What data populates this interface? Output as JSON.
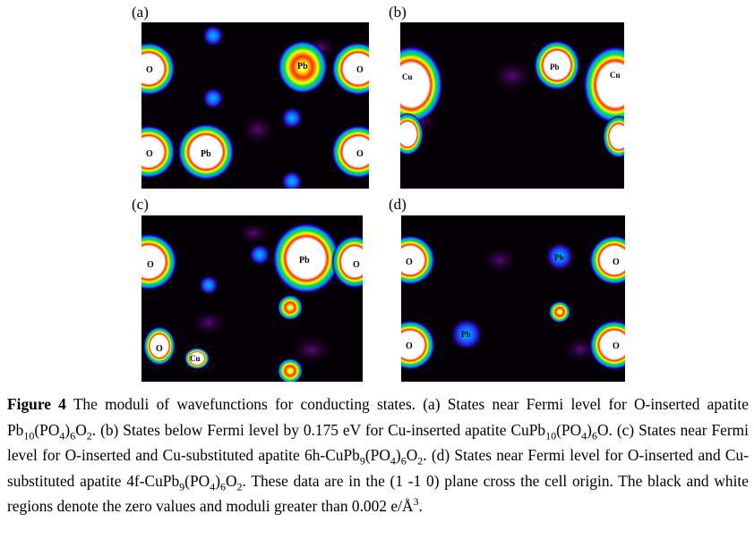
{
  "panels": [
    {
      "id": "a",
      "label": "(a)",
      "atoms": [
        {
          "label": "O"
        },
        {
          "label": "Pb"
        },
        {
          "label": "O"
        },
        {
          "label": "O"
        },
        {
          "label": "Pb"
        },
        {
          "label": "O"
        }
      ]
    },
    {
      "id": "b",
      "label": "(b)",
      "atoms": [
        {
          "label": "Cu"
        },
        {
          "label": "Pb"
        },
        {
          "label": "Cu"
        }
      ]
    },
    {
      "id": "c",
      "label": "(c)",
      "atoms": [
        {
          "label": "O"
        },
        {
          "label": "Pb"
        },
        {
          "label": "O"
        },
        {
          "label": "O"
        },
        {
          "label": "Cu"
        }
      ]
    },
    {
      "id": "d",
      "label": "(d)",
      "atoms": [
        {
          "label": "O"
        },
        {
          "label": "Pb"
        },
        {
          "label": "O"
        },
        {
          "label": "O"
        },
        {
          "label": "Pb"
        },
        {
          "label": "O"
        }
      ]
    }
  ],
  "caption": {
    "figure": "Figure 4",
    "lead": "The moduli of wavefunctions for conducting states. (a) States near Fermi level for O-inserted apatite Pb",
    "parts": [
      {
        "t": "Pb",
        "s": ""
      },
      {
        "t": "10",
        "s": "sub"
      },
      {
        "t": "(PO",
        "s": ""
      },
      {
        "t": "4",
        "s": "sub"
      },
      {
        "t": ")",
        "s": ""
      },
      {
        "t": "6",
        "s": "sub"
      },
      {
        "t": "O",
        "s": ""
      },
      {
        "t": "2",
        "s": "sub"
      },
      {
        "t": ". (b) States below Fermi level by 0.175 eV for Cu-inserted apatite CuPb",
        "s": ""
      },
      {
        "t": "10",
        "s": "sub"
      },
      {
        "t": "(PO",
        "s": ""
      },
      {
        "t": "4",
        "s": "sub"
      },
      {
        "t": ")",
        "s": ""
      },
      {
        "t": "6",
        "s": "sub"
      },
      {
        "t": "O. (c) States near Fermi level for O-inserted and Cu-substituted apatite 6h-CuPb",
        "s": ""
      },
      {
        "t": "9",
        "s": "sub"
      },
      {
        "t": "(PO",
        "s": ""
      },
      {
        "t": "4",
        "s": "sub"
      },
      {
        "t": ")",
        "s": ""
      },
      {
        "t": "6",
        "s": "sub"
      },
      {
        "t": "O",
        "s": ""
      },
      {
        "t": "2",
        "s": "sub"
      },
      {
        "t": ". (d) States near Fermi level for O-inserted and Cu-substituted apatite 4f-CuPb",
        "s": ""
      },
      {
        "t": "9",
        "s": "sub"
      },
      {
        "t": "(PO",
        "s": ""
      },
      {
        "t": "4",
        "s": "sub"
      },
      {
        "t": ")",
        "s": ""
      },
      {
        "t": "6",
        "s": "sub"
      },
      {
        "t": "O",
        "s": ""
      },
      {
        "t": "2",
        "s": "sub"
      },
      {
        "t": ". These data are in the (1 -1 0) plane cross the cell origin. The black and white regions denote the zero values and moduli greater than 0.002 e/Å",
        "s": ""
      },
      {
        "t": "3",
        "s": "sup"
      },
      {
        "t": ".",
        "s": ""
      }
    ]
  }
}
